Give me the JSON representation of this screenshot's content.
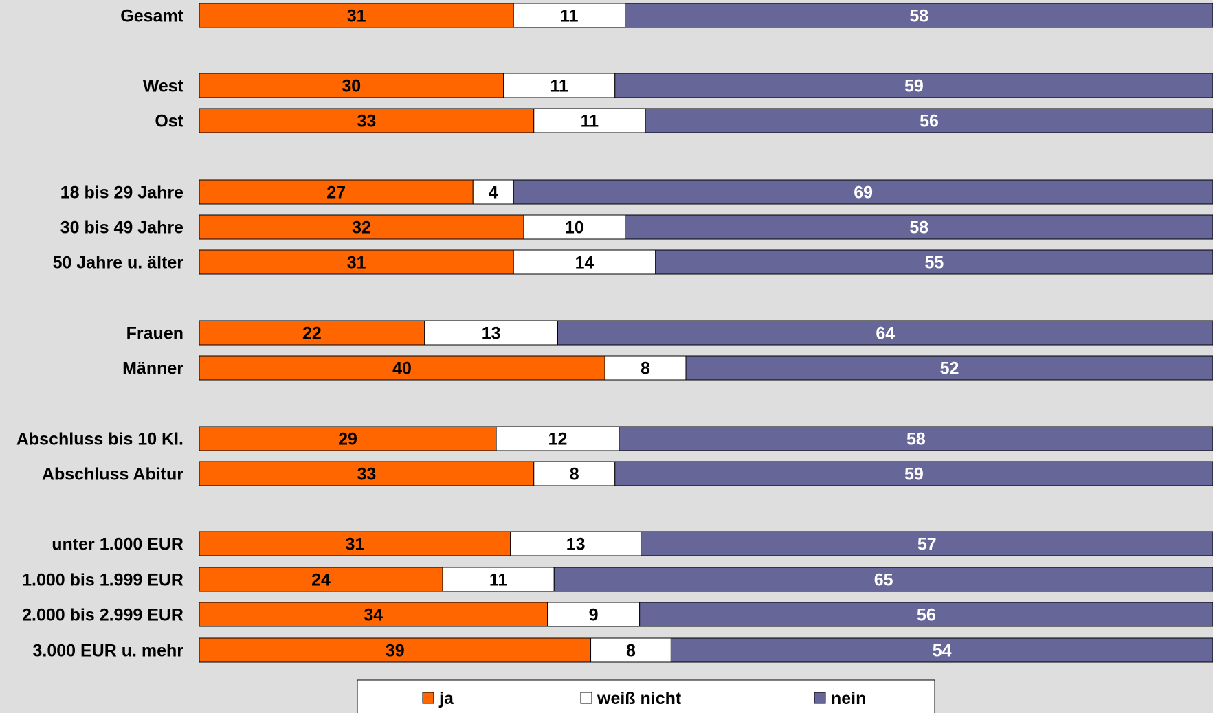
{
  "chart_data": {
    "type": "bar",
    "orientation": "horizontal",
    "stacked": true,
    "percent_stacked": true,
    "categories": [
      "Gesamt",
      "West",
      "Ost",
      "18 bis 29 Jahre",
      "30 bis 49 Jahre",
      "50 Jahre u. älter",
      "Frauen",
      "Männer",
      "Abschluss bis 10 Kl.",
      "Abschluss Abitur",
      "unter 1.000 EUR",
      "1.000 bis 1.999 EUR",
      "2.000 bis 2.999 EUR",
      "3.000 EUR u. mehr"
    ],
    "series": [
      {
        "name": "ja",
        "color": "#ff6600",
        "label_color": "#000000",
        "values": [
          31,
          30,
          33,
          27,
          32,
          31,
          22,
          40,
          29,
          33,
          31,
          24,
          34,
          39
        ]
      },
      {
        "name": "weiß nicht",
        "color": "#ffffff",
        "label_color": "#000000",
        "values": [
          11,
          11,
          11,
          4,
          10,
          14,
          13,
          8,
          12,
          8,
          13,
          11,
          9,
          8
        ]
      },
      {
        "name": "nein",
        "color": "#666699",
        "label_color": "#ffffff",
        "values": [
          58,
          59,
          56,
          69,
          58,
          55,
          64,
          52,
          58,
          59,
          57,
          65,
          56,
          54
        ]
      }
    ],
    "xlim": [
      0,
      100
    ],
    "grid": false,
    "legend_position": "bottom",
    "background": "#dedede",
    "bar_border": "#000000"
  }
}
